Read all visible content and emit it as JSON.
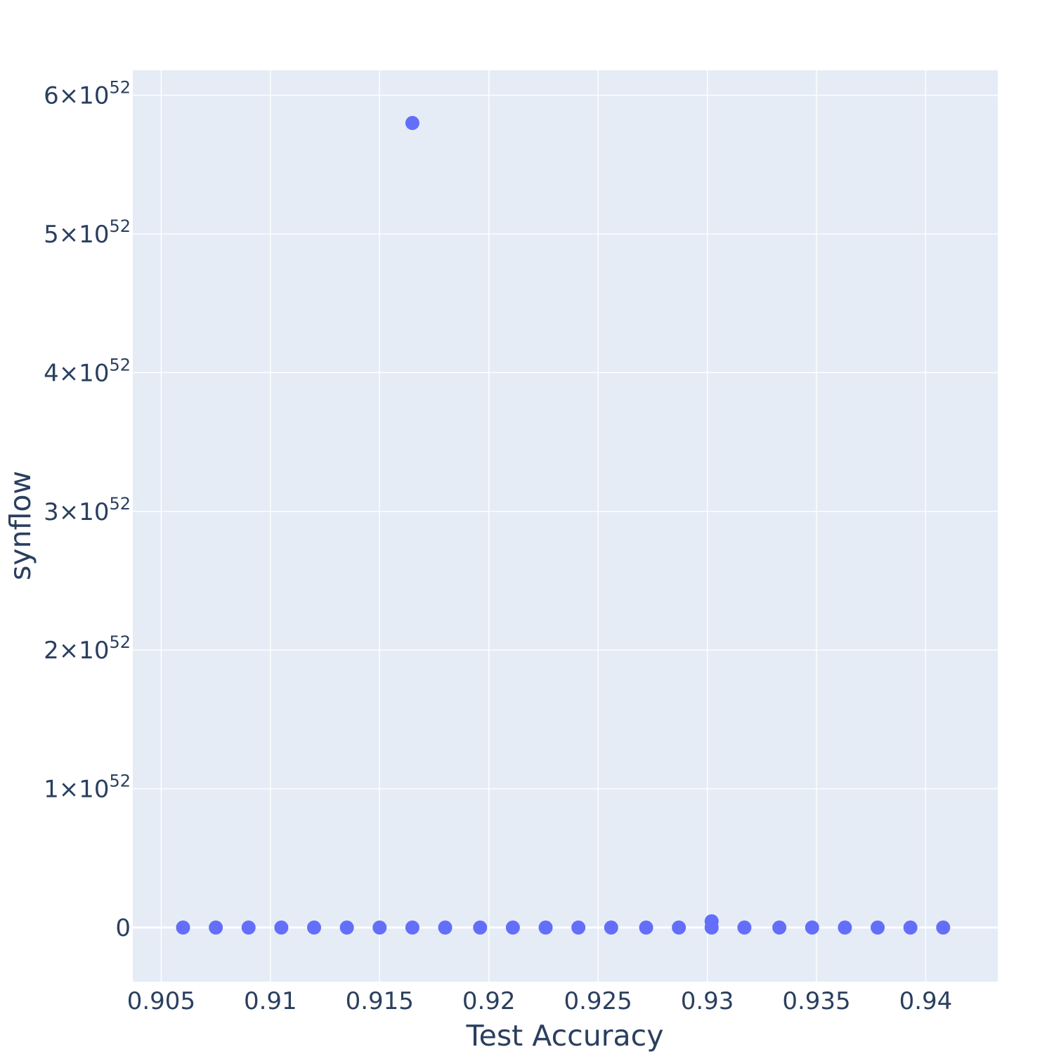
{
  "chart_data": {
    "type": "scatter",
    "title": "",
    "xlabel": "Test Accuracy",
    "ylabel": "synflow",
    "xlim": [
      0.9037,
      0.9433
    ],
    "ylim": [
      -3.9e+51,
      6.18e+52
    ],
    "x_ticks": [
      {
        "value": 0.905,
        "label": "0.905"
      },
      {
        "value": 0.91,
        "label": "0.91"
      },
      {
        "value": 0.915,
        "label": "0.915"
      },
      {
        "value": 0.92,
        "label": "0.92"
      },
      {
        "value": 0.925,
        "label": "0.925"
      },
      {
        "value": 0.93,
        "label": "0.93"
      },
      {
        "value": 0.935,
        "label": "0.935"
      },
      {
        "value": 0.94,
        "label": "0.94"
      }
    ],
    "y_ticks": [
      {
        "value": 0,
        "mantissa": "0",
        "exponent": ""
      },
      {
        "value": 1e+52,
        "mantissa": "1×10",
        "exponent": "52"
      },
      {
        "value": 2e+52,
        "mantissa": "2×10",
        "exponent": "52"
      },
      {
        "value": 3e+52,
        "mantissa": "3×10",
        "exponent": "52"
      },
      {
        "value": 4e+52,
        "mantissa": "4×10",
        "exponent": "52"
      },
      {
        "value": 5e+52,
        "mantissa": "5×10",
        "exponent": "52"
      },
      {
        "value": 6e+52,
        "mantissa": "6×10",
        "exponent": "52"
      }
    ],
    "grid": true,
    "colors": {
      "marker": "#636efa",
      "plot_background": "#e5ecf6",
      "grid": "#ffffff",
      "text": "#2a3f5f"
    },
    "series": [
      {
        "x": [
          0.906,
          0.9075,
          0.909,
          0.9105,
          0.912,
          0.9135,
          0.915,
          0.9165,
          0.9165,
          0.918,
          0.9196,
          0.9211,
          0.9226,
          0.9241,
          0.9256,
          0.9272,
          0.9287,
          0.9302,
          0.9302,
          0.9317,
          0.9333,
          0.9348,
          0.9363,
          0.9378,
          0.9393,
          0.9408
        ],
        "y": [
          0,
          0,
          0,
          0,
          0,
          0,
          0,
          0,
          5.8e+52,
          0,
          0,
          0,
          0,
          0,
          0,
          0,
          0,
          0,
          4.5e+50,
          0,
          0,
          0,
          0,
          0,
          0,
          0
        ]
      }
    ]
  }
}
